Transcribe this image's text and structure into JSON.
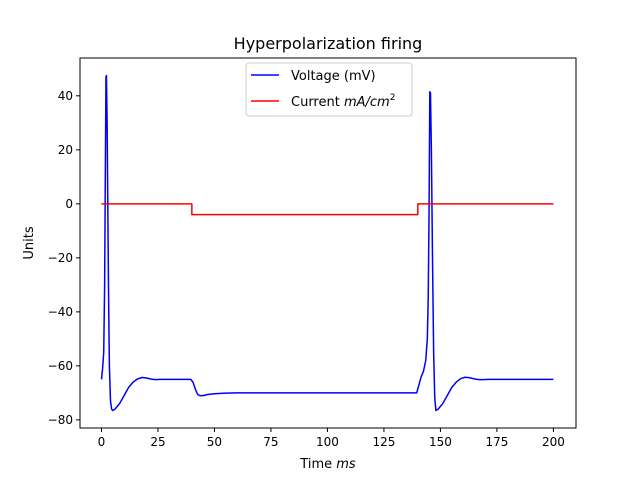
{
  "chart_data": {
    "type": "line",
    "title": "Hyperpolarization firing",
    "xlabel_text": "Time ",
    "xlabel_unit": "ms",
    "ylabel": "Units",
    "xlim": [
      -9.5,
      210
    ],
    "ylim": [
      -83,
      54
    ],
    "x_ticks": [
      0,
      25,
      50,
      75,
      100,
      125,
      150,
      175,
      200
    ],
    "y_ticks": [
      -80,
      -60,
      -40,
      -20,
      0,
      20,
      40
    ],
    "y_tick_labels": [
      "−80",
      "−60",
      "−40",
      "−20",
      "0",
      "20",
      "40"
    ],
    "grid": false,
    "legend_position": "top-center",
    "series": [
      {
        "name": "Voltage (mV)",
        "color": "#0000ff",
        "x": [
          0,
          0.5,
          1.0,
          1.4,
          1.7,
          2.0,
          2.2,
          2.5,
          2.8,
          3.1,
          3.5,
          4.0,
          4.5,
          5.0,
          6.0,
          7.0,
          8.0,
          10,
          12,
          14,
          16,
          18,
          20,
          22,
          24,
          26,
          28,
          30,
          33,
          36,
          39.5,
          40.5,
          41.5,
          42.5,
          43.5,
          45,
          47,
          50,
          55,
          60,
          70,
          80,
          100,
          120,
          139.5,
          140.5,
          141.5,
          142.5,
          143.5,
          144.2,
          144.6,
          145.0,
          145.3,
          145.6,
          146.0,
          146.5,
          147.0,
          147.5,
          148,
          149,
          150,
          151,
          153,
          155,
          157,
          159,
          161,
          163,
          165,
          167,
          169,
          171,
          175,
          180,
          190,
          200
        ],
        "y": [
          -65,
          -61,
          -55,
          -30,
          10,
          47,
          47.5,
          30,
          0,
          -30,
          -60,
          -73,
          -76,
          -76.5,
          -76,
          -75,
          -74,
          -71,
          -68,
          -66,
          -64.8,
          -64.3,
          -64.5,
          -64.9,
          -65.1,
          -65,
          -65,
          -65,
          -65,
          -65,
          -65,
          -66,
          -68.5,
          -70.5,
          -71,
          -71,
          -70.6,
          -70.3,
          -70.1,
          -70,
          -70,
          -70,
          -70,
          -70,
          -70,
          -67,
          -64,
          -62,
          -58,
          -50,
          -35,
          0,
          41.5,
          41,
          20,
          -20,
          -55,
          -72,
          -76.5,
          -76,
          -75,
          -74,
          -71,
          -68,
          -66,
          -64.7,
          -64.2,
          -64.4,
          -64.8,
          -65.1,
          -65.1,
          -65,
          -65,
          -65,
          -65,
          -65
        ]
      },
      {
        "name": "Current $mA/cm^2$",
        "legend_label_text": "Current ",
        "legend_label_math": "mA/cm",
        "legend_label_sup": "2",
        "color": "#ff0000",
        "x": [
          0,
          40,
          40,
          140,
          140,
          200
        ],
        "y": [
          0,
          0,
          -4,
          -4,
          0,
          0
        ]
      }
    ]
  }
}
